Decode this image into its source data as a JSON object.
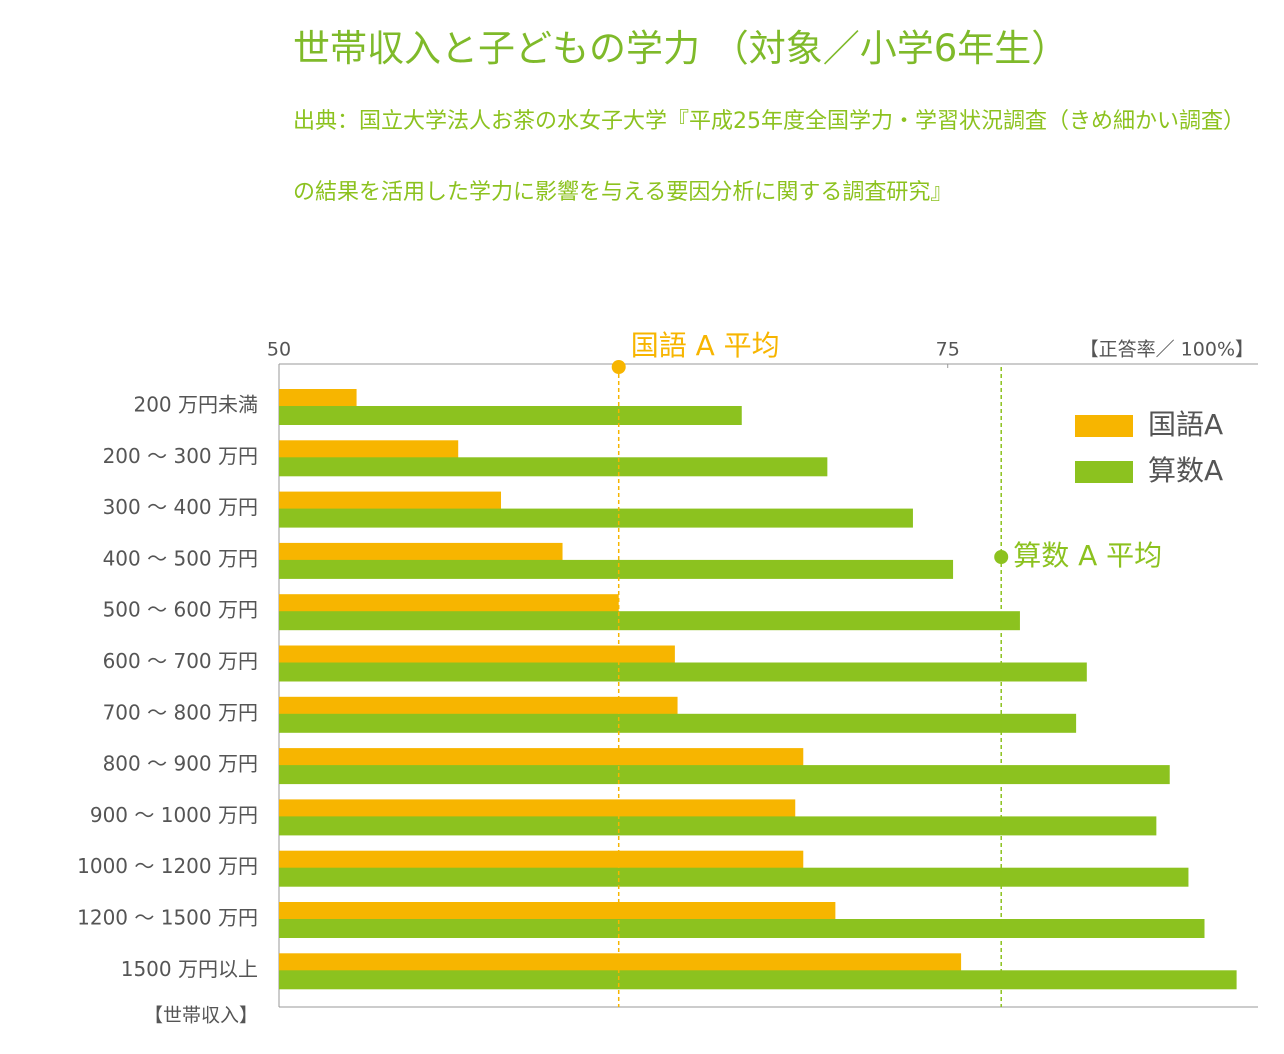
{
  "chart_data": {
    "type": "bar",
    "orientation": "horizontal",
    "title": "世帯収入と子どもの学力 （対象／小学6年生）",
    "subtitle": "出典：国立大学法人お茶の水女子大学『平成25年度全国学力・学習状況調査（きめ細かい調査）の結果を活用した学力に影響を与える要因分析に関する調査研究』",
    "x_label": "【正答率／ 100%】",
    "y_label": "【世帯収入】",
    "categories": [
      "200 万円未満",
      "200 〜 300 万円",
      "300 〜 400 万円",
      "400 〜 500 万円",
      "500 〜 600 万円",
      "600 〜 700 万円",
      "700 〜 800 万円",
      "800 〜 900 万円",
      "900 〜 1000 万円",
      "1000 〜 1200 万円",
      "1200 〜 1500 万円",
      "1500 万円以上"
    ],
    "series": [
      {
        "name": "国語A",
        "color": "#f7b500",
        "values": [
          52.9,
          56.7,
          58.3,
          60.6,
          62.7,
          64.8,
          64.9,
          69.6,
          69.3,
          69.6,
          70.8,
          75.5
        ]
      },
      {
        "name": "算数A",
        "color": "#8cc21f",
        "values": [
          67.3,
          70.5,
          73.7,
          75.2,
          77.7,
          80.2,
          79.8,
          83.3,
          82.8,
          84.0,
          84.6,
          85.8
        ]
      }
    ],
    "reference_lines": [
      {
        "label": "国語 A 平均",
        "value": 62.7,
        "color": "#f7b500"
      },
      {
        "label": "算数 A 平均",
        "value": 77.0,
        "color": "#8cc21f"
      }
    ],
    "xlim": [
      50,
      86.6
    ],
    "xticks": [
      50,
      75
    ],
    "legend": "upper right"
  }
}
